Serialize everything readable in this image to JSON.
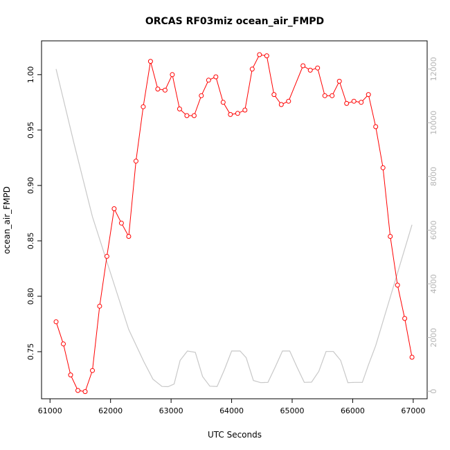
{
  "chart_data": {
    "type": "line",
    "title": "ORCAS RF03miz ocean_air_FMPD",
    "xlabel": "UTC Seconds",
    "ylabel": "ocean_air_FMPD",
    "xlim": [
      60860,
      67230
    ],
    "ylim": [
      0.7075,
      1.0305
    ],
    "y2lim": [
      -280,
      13050
    ],
    "xticks": [
      "61000",
      "62000",
      "63000",
      "64000",
      "65000",
      "66000",
      "67000"
    ],
    "yticks": [
      "0.75",
      "0.80",
      "0.85",
      "0.90",
      "0.95",
      "1.00"
    ],
    "y2ticks": [
      "0",
      "2000",
      "4000",
      "6000",
      "8000",
      "10000",
      "12000"
    ],
    "grid": false,
    "colors": {
      "primary": "#ff0000",
      "secondary": "#c8c8c8",
      "axis": "#000000",
      "axis2": "#b4b4b4"
    },
    "series": [
      {
        "axis": "left",
        "style": "line+markers",
        "x": [
          61100,
          61220,
          61340,
          61460,
          61580,
          61700,
          61820,
          61940,
          62060,
          62180,
          62300,
          62420,
          62540,
          62660,
          62780,
          62900,
          63020,
          63140,
          63260,
          63380,
          63500,
          63620,
          63740,
          63860,
          63980,
          64100,
          64220,
          64340,
          64460,
          64580,
          64700,
          64820,
          64940,
          65180,
          65300,
          65420,
          65540,
          65660,
          65780,
          65900,
          66020,
          66140,
          66260,
          66380,
          66500,
          66620,
          66740,
          66860,
          66980
        ],
        "y": [
          0.777,
          0.757,
          0.729,
          0.715,
          0.714,
          0.733,
          0.791,
          0.836,
          0.879,
          0.866,
          0.854,
          0.922,
          0.971,
          1.012,
          0.987,
          0.986,
          1.0,
          0.969,
          0.963,
          0.963,
          0.981,
          0.995,
          0.998,
          0.975,
          0.964,
          0.965,
          0.968,
          1.005,
          1.018,
          1.017,
          0.982,
          0.973,
          0.976,
          1.008,
          1.004,
          1.006,
          0.981,
          0.981,
          0.994,
          0.974,
          0.976,
          0.975,
          0.982,
          0.953,
          0.916,
          0.854,
          0.81,
          0.78,
          0.745
        ]
      },
      {
        "axis": "right",
        "style": "line",
        "x": [
          61100,
          61400,
          61700,
          62000,
          62300,
          62550,
          62700,
          62850,
          62950,
          63050,
          63150,
          63270,
          63400,
          63520,
          63640,
          63760,
          63880,
          64000,
          64140,
          64240,
          64360,
          64480,
          64600,
          64720,
          64840,
          64960,
          65080,
          65200,
          65320,
          65440,
          65560,
          65680,
          65800,
          65920,
          66040,
          66160,
          66260,
          66380,
          66980
        ],
        "y": [
          12000,
          9200,
          6500,
          4400,
          2300,
          1100,
          450,
          180,
          170,
          270,
          1150,
          1500,
          1450,
          550,
          190,
          180,
          800,
          1500,
          1500,
          1250,
          400,
          320,
          330,
          900,
          1500,
          1500,
          900,
          330,
          340,
          740,
          1480,
          1480,
          1150,
          320,
          330,
          330,
          980,
          1700,
          6200
        ]
      }
    ]
  }
}
